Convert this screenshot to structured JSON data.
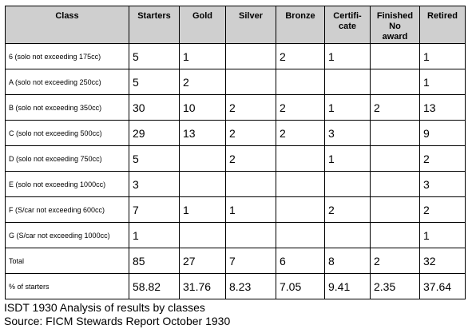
{
  "table": {
    "columns": [
      "Class",
      "Starters",
      "Gold",
      "Silver",
      "Bronze",
      "Certifi-\ncate",
      "Finished\nNo\naward",
      "Retired"
    ],
    "rows": [
      [
        "6 (solo not exceeding 175cc)",
        "5",
        "1",
        "",
        "2",
        "1",
        "",
        "1"
      ],
      [
        "A (solo not exceeding 250cc)",
        "5",
        "2",
        "",
        "",
        "",
        "",
        "1"
      ],
      [
        "B (solo not exceeding 350cc)",
        "30",
        "10",
        "2",
        "2",
        "1",
        "2",
        "13"
      ],
      [
        "C (solo not exceeding 500cc)",
        "29",
        "13",
        "2",
        "2",
        "3",
        "",
        "9"
      ],
      [
        "D (solo not exceeding 750cc)",
        "5",
        "",
        "2",
        "",
        "1",
        "",
        "2"
      ],
      [
        "E (solo not exceeding 1000cc)",
        "3",
        "",
        "",
        "",
        "",
        "",
        "3"
      ],
      [
        "F (S/car not exceeding 600cc)",
        "7",
        "1",
        "1",
        "",
        "2",
        "",
        "2"
      ],
      [
        "G (S/car not exceeding 1000cc)",
        "1",
        "",
        "",
        "",
        "",
        "",
        "1"
      ],
      [
        "Total",
        "85",
        "27",
        "7",
        "6",
        "8",
        "2",
        "32"
      ],
      [
        "% of starters",
        "58.82",
        "31.76",
        "8.23",
        "7.05",
        "9.41",
        "2.35",
        "37.64"
      ]
    ]
  },
  "caption": {
    "line1": "ISDT 1930 Analysis of results by classes",
    "line2": "Source: FICM Stewards Report October 1930"
  },
  "colors": {
    "header_bg": "#cfcfcf",
    "border": "#000000",
    "text": "#000000"
  }
}
